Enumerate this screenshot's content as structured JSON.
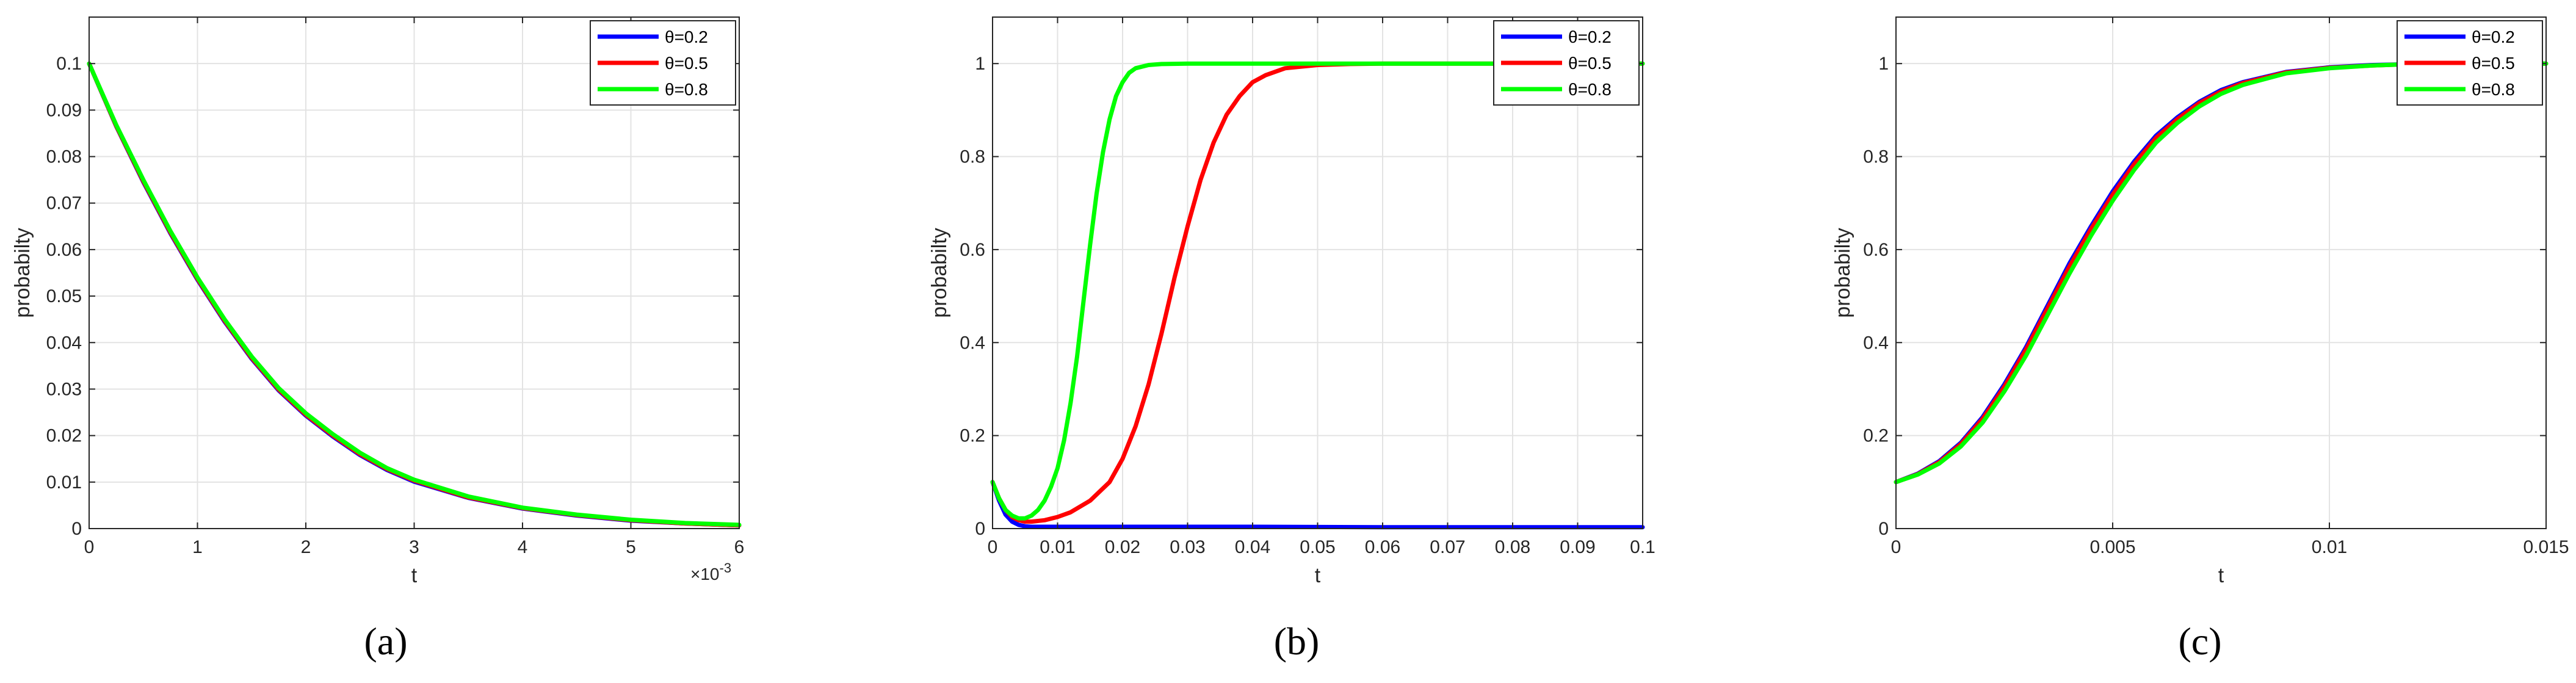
{
  "colors": {
    "theta_0_2": "#0000ff",
    "theta_0_5": "#ff0000",
    "theta_0_8": "#00ff00",
    "grid": "#e3e3e3",
    "axis": "#262626"
  },
  "chart_data": [
    {
      "type": "line",
      "caption": "(a)",
      "xlabel": "t",
      "ylabel": "probabilty",
      "x_exponent_label": "×10",
      "x_exponent_power": "-3",
      "xlim": [
        0,
        6
      ],
      "ylim": [
        0,
        0.11
      ],
      "xticks": [
        0,
        1,
        2,
        3,
        4,
        5,
        6
      ],
      "xtick_labels": [
        "0",
        "1",
        "2",
        "3",
        "4",
        "5",
        "6"
      ],
      "yticks": [
        0,
        0.01,
        0.02,
        0.03,
        0.04,
        0.05,
        0.06,
        0.07,
        0.08,
        0.09,
        0.1
      ],
      "ytick_labels": [
        "0",
        "0.01",
        "0.02",
        "0.03",
        "0.04",
        "0.05",
        "0.06",
        "0.07",
        "0.08",
        "0.09",
        "0.1"
      ],
      "grid": true,
      "legend_position": "top-right",
      "series": [
        {
          "name": "θ=0.2",
          "color": "#0000ff",
          "x": [
            0,
            0.25,
            0.5,
            0.75,
            1,
            1.25,
            1.5,
            1.75,
            2,
            2.25,
            2.5,
            2.75,
            3,
            3.5,
            4,
            4.5,
            5,
            5.5,
            6
          ],
          "y": [
            0.1,
            0.0865,
            0.0745,
            0.0635,
            0.0535,
            0.0445,
            0.0365,
            0.0297,
            0.0243,
            0.0198,
            0.0158,
            0.0126,
            0.0101,
            0.0066,
            0.0043,
            0.0028,
            0.0017,
            0.0011,
            0.0007
          ]
        },
        {
          "name": "θ=0.5",
          "color": "#ff0000",
          "x": [
            0,
            0.25,
            0.5,
            0.75,
            1,
            1.25,
            1.5,
            1.75,
            2,
            2.25,
            2.5,
            2.75,
            3,
            3.5,
            4,
            4.5,
            5,
            5.5,
            6
          ],
          "y": [
            0.1,
            0.0866,
            0.0747,
            0.0637,
            0.0537,
            0.0447,
            0.0367,
            0.0299,
            0.0245,
            0.02,
            0.016,
            0.0128,
            0.0103,
            0.0067,
            0.0044,
            0.0029,
            0.0018,
            0.0011,
            0.0007
          ]
        },
        {
          "name": "θ=0.8",
          "color": "#00ff00",
          "x": [
            0,
            0.25,
            0.5,
            0.75,
            1,
            1.25,
            1.5,
            1.75,
            2,
            2.25,
            2.5,
            2.75,
            3,
            3.5,
            4,
            4.5,
            5,
            5.5,
            6
          ],
          "y": [
            0.1,
            0.0868,
            0.075,
            0.064,
            0.054,
            0.045,
            0.037,
            0.0302,
            0.0248,
            0.0203,
            0.0163,
            0.013,
            0.0105,
            0.0069,
            0.0045,
            0.003,
            0.0019,
            0.0012,
            0.0008
          ]
        }
      ]
    },
    {
      "type": "line",
      "caption": "(b)",
      "xlabel": "t",
      "ylabel": "probabilty",
      "xlim": [
        0,
        0.1
      ],
      "ylim": [
        0,
        1.1
      ],
      "xticks": [
        0,
        0.01,
        0.02,
        0.03,
        0.04,
        0.05,
        0.06,
        0.07,
        0.08,
        0.09,
        0.1
      ],
      "xtick_labels": [
        "0",
        "0.01",
        "0.02",
        "0.03",
        "0.04",
        "0.05",
        "0.06",
        "0.07",
        "0.08",
        "0.09",
        "0.1"
      ],
      "yticks": [
        0,
        0.2,
        0.4,
        0.6,
        0.8,
        1
      ],
      "ytick_labels": [
        "0",
        "0.2",
        "0.4",
        "0.6",
        "0.8",
        "1"
      ],
      "grid": true,
      "legend_position": "top-right",
      "series": [
        {
          "name": "θ=0.2",
          "color": "#0000ff",
          "x": [
            0,
            0.001,
            0.002,
            0.003,
            0.004,
            0.005,
            0.006,
            0.008,
            0.01,
            0.02,
            0.04,
            0.06,
            0.08,
            0.1
          ],
          "y": [
            0.1,
            0.06,
            0.03,
            0.015,
            0.008,
            0.005,
            0.004,
            0.004,
            0.004,
            0.004,
            0.004,
            0.003,
            0.003,
            0.003
          ]
        },
        {
          "name": "θ=0.5",
          "color": "#ff0000",
          "x": [
            0,
            0.001,
            0.002,
            0.003,
            0.004,
            0.005,
            0.006,
            0.008,
            0.01,
            0.012,
            0.015,
            0.018,
            0.02,
            0.022,
            0.024,
            0.026,
            0.028,
            0.03,
            0.032,
            0.034,
            0.036,
            0.038,
            0.04,
            0.042,
            0.045,
            0.05,
            0.055,
            0.06,
            0.07,
            0.08,
            0.1
          ],
          "y": [
            0.1,
            0.065,
            0.04,
            0.025,
            0.018,
            0.015,
            0.015,
            0.018,
            0.025,
            0.035,
            0.06,
            0.1,
            0.15,
            0.22,
            0.31,
            0.42,
            0.54,
            0.65,
            0.75,
            0.83,
            0.89,
            0.93,
            0.96,
            0.975,
            0.99,
            0.997,
            0.999,
            1,
            1,
            1,
            1
          ]
        },
        {
          "name": "θ=0.8",
          "color": "#00ff00",
          "x": [
            0,
            0.001,
            0.002,
            0.003,
            0.004,
            0.005,
            0.006,
            0.007,
            0.008,
            0.009,
            0.01,
            0.011,
            0.012,
            0.013,
            0.014,
            0.015,
            0.016,
            0.017,
            0.018,
            0.019,
            0.02,
            0.021,
            0.022,
            0.024,
            0.026,
            0.03,
            0.04,
            0.06,
            0.1
          ],
          "y": [
            0.1,
            0.065,
            0.04,
            0.028,
            0.022,
            0.022,
            0.028,
            0.04,
            0.06,
            0.09,
            0.13,
            0.19,
            0.27,
            0.37,
            0.49,
            0.61,
            0.72,
            0.81,
            0.88,
            0.93,
            0.96,
            0.98,
            0.99,
            0.997,
            0.999,
            1,
            1,
            1,
            1
          ]
        }
      ]
    },
    {
      "type": "line",
      "caption": "(c)",
      "xlabel": "t",
      "ylabel": "probabilty",
      "xlim": [
        0,
        0.015
      ],
      "ylim": [
        0,
        1.1
      ],
      "xticks": [
        0,
        0.005,
        0.01,
        0.015
      ],
      "xtick_labels": [
        "0",
        "0.005",
        "0.01",
        "0.015"
      ],
      "yticks": [
        0,
        0.2,
        0.4,
        0.6,
        0.8,
        1
      ],
      "ytick_labels": [
        "0",
        "0.2",
        "0.4",
        "0.6",
        "0.8",
        "1"
      ],
      "grid": true,
      "legend_position": "top-right",
      "series": [
        {
          "name": "θ=0.2",
          "color": "#0000ff",
          "x": [
            0,
            0.0005,
            0.001,
            0.0015,
            0.002,
            0.0025,
            0.003,
            0.0035,
            0.004,
            0.0045,
            0.005,
            0.0055,
            0.006,
            0.0065,
            0.007,
            0.0075,
            0.008,
            0.009,
            0.01,
            0.011,
            0.012,
            0.013,
            0.015
          ],
          "y": [
            0.1,
            0.118,
            0.145,
            0.185,
            0.24,
            0.31,
            0.39,
            0.48,
            0.57,
            0.65,
            0.725,
            0.79,
            0.845,
            0.885,
            0.918,
            0.943,
            0.96,
            0.982,
            0.992,
            0.997,
            0.999,
            1,
            1
          ]
        },
        {
          "name": "θ=0.5",
          "color": "#ff0000",
          "x": [
            0,
            0.0005,
            0.001,
            0.0015,
            0.002,
            0.0025,
            0.003,
            0.0035,
            0.004,
            0.0045,
            0.005,
            0.0055,
            0.006,
            0.0065,
            0.007,
            0.0075,
            0.008,
            0.009,
            0.01,
            0.011,
            0.012,
            0.013,
            0.015
          ],
          "y": [
            0.1,
            0.117,
            0.143,
            0.182,
            0.236,
            0.305,
            0.385,
            0.474,
            0.563,
            0.644,
            0.718,
            0.784,
            0.84,
            0.881,
            0.915,
            0.94,
            0.958,
            0.981,
            0.991,
            0.996,
            0.999,
            1,
            1
          ]
        },
        {
          "name": "θ=0.8",
          "color": "#00ff00",
          "x": [
            0,
            0.0005,
            0.001,
            0.0015,
            0.002,
            0.0025,
            0.003,
            0.0035,
            0.004,
            0.0045,
            0.005,
            0.0055,
            0.006,
            0.0065,
            0.007,
            0.0075,
            0.008,
            0.009,
            0.01,
            0.011,
            0.012,
            0.013,
            0.015
          ],
          "y": [
            0.1,
            0.116,
            0.14,
            0.177,
            0.228,
            0.295,
            0.372,
            0.46,
            0.548,
            0.63,
            0.705,
            0.772,
            0.83,
            0.873,
            0.908,
            0.935,
            0.954,
            0.979,
            0.99,
            0.996,
            0.999,
            1,
            1
          ]
        }
      ]
    }
  ]
}
